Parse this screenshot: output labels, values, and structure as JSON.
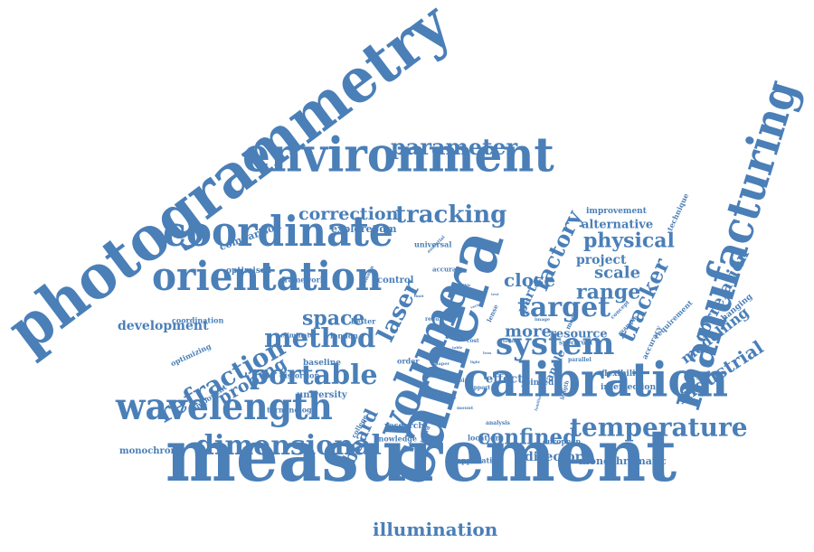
{
  "cloud": {
    "color": "#4a7fb8",
    "words": [
      {
        "text": "photogrammetry",
        "weight": 10
      },
      {
        "text": "measurement",
        "weight": 9
      },
      {
        "text": "camera",
        "weight": 9
      },
      {
        "text": "environment",
        "weight": 8
      },
      {
        "text": "manufacturing",
        "weight": 8
      },
      {
        "text": "calibration",
        "weight": 8
      },
      {
        "text": "volume",
        "weight": 7
      },
      {
        "text": "coordinate",
        "weight": 7
      },
      {
        "text": "orientation",
        "weight": 6
      },
      {
        "text": "wavelength",
        "weight": 6
      },
      {
        "text": "system",
        "weight": 5
      },
      {
        "text": "dimensional",
        "weight": 5
      },
      {
        "text": "temperature",
        "weight": 5
      },
      {
        "text": "portable",
        "weight": 5
      },
      {
        "text": "method",
        "weight": 4
      },
      {
        "text": "refraction",
        "weight": 4
      },
      {
        "text": "target",
        "weight": 4
      },
      {
        "text": "tracking",
        "weight": 4
      },
      {
        "text": "parameter",
        "weight": 4
      },
      {
        "text": "laser",
        "weight": 4
      },
      {
        "text": "confined",
        "weight": 4
      },
      {
        "text": "tracker",
        "weight": 4
      },
      {
        "text": "correction",
        "weight": 3
      },
      {
        "text": "factory",
        "weight": 3
      },
      {
        "text": "physical",
        "weight": 3
      },
      {
        "text": "range",
        "weight": 3
      },
      {
        "text": "space",
        "weight": 3
      },
      {
        "text": "board",
        "weight": 3
      },
      {
        "text": "illumination",
        "weight": 3
      },
      {
        "text": "industrial",
        "weight": 3
      },
      {
        "text": "correlation",
        "weight": 3
      },
      {
        "text": "modelling",
        "weight": 3
      },
      {
        "text": "close",
        "weight": 3
      },
      {
        "text": "scale",
        "weight": 3
      },
      {
        "text": "more",
        "weight": 3
      },
      {
        "text": "probing",
        "weight": 3
      },
      {
        "text": "development",
        "weight": 2
      },
      {
        "text": "directory",
        "weight": 2
      },
      {
        "text": "project",
        "weight": 2
      },
      {
        "text": "alternative",
        "weight": 2
      },
      {
        "text": "part",
        "weight": 2
      },
      {
        "text": "resource",
        "weight": 2
      },
      {
        "text": "comparison",
        "weight": 2
      },
      {
        "text": "explore3dm",
        "weight": 2
      },
      {
        "text": "effect",
        "weight": 2
      },
      {
        "text": "angle",
        "weight": 2
      },
      {
        "text": "optimised",
        "weight": 1
      },
      {
        "text": "control",
        "weight": 1
      },
      {
        "text": "improvement",
        "weight": 1
      },
      {
        "text": "technique",
        "weight": 1
      },
      {
        "text": "monochromatic",
        "weight": 1
      },
      {
        "text": "monochrome",
        "weight": 1
      },
      {
        "text": "university",
        "weight": 1
      },
      {
        "text": "jointed",
        "weight": 1
      },
      {
        "text": "flexibility",
        "weight": 1
      },
      {
        "text": "intersection",
        "weight": 1
      },
      {
        "text": "changing",
        "weight": 1
      },
      {
        "text": "accuracy",
        "weight": 1
      },
      {
        "text": "requirement",
        "weight": 1
      },
      {
        "text": "research",
        "weight": 1
      },
      {
        "text": "knowledge",
        "weight": 1
      },
      {
        "text": "location",
        "weight": 1
      },
      {
        "text": "european",
        "weight": 1
      },
      {
        "text": "application",
        "weight": 1
      },
      {
        "text": "baseline",
        "weight": 1
      },
      {
        "text": "distortion",
        "weight": 1
      },
      {
        "text": "terminology",
        "weight": 1
      },
      {
        "text": "component",
        "weight": 1
      },
      {
        "text": "optimizing",
        "weight": 1
      },
      {
        "text": "coordination",
        "weight": 1
      },
      {
        "text": "framework",
        "weight": 1
      },
      {
        "text": "london",
        "weight": 1
      },
      {
        "text": "better",
        "weight": 1
      },
      {
        "text": "order",
        "weight": 1
      },
      {
        "text": "eliminate",
        "weight": 1
      },
      {
        "text": "spectrum",
        "weight": 1
      },
      {
        "text": "universal",
        "weight": 1
      },
      {
        "text": "accurate",
        "weight": 1
      },
      {
        "text": "lense",
        "weight": 1
      },
      {
        "text": "model",
        "weight": 1
      },
      {
        "text": "example",
        "weight": 1
      },
      {
        "text": "concept",
        "weight": 1
      },
      {
        "text": "parallel",
        "weight": 1
      },
      {
        "text": "college",
        "weight": 1
      },
      {
        "text": "analysis",
        "weight": 1
      },
      {
        "text": "standard",
        "weight": 1
      },
      {
        "text": "point",
        "weight": 1
      },
      {
        "text": "support",
        "weight": 1
      },
      {
        "text": "length",
        "weight": 1
      },
      {
        "text": "cost",
        "weight": 1
      },
      {
        "text": "focal",
        "weight": 1
      },
      {
        "text": "image",
        "weight": 1
      },
      {
        "text": "require",
        "weight": 1
      },
      {
        "text": "paper",
        "weight": 1
      },
      {
        "text": "future",
        "weight": 1
      },
      {
        "text": "mount",
        "weight": 1
      },
      {
        "text": "common",
        "weight": 1
      },
      {
        "text": "essential",
        "weight": 1
      },
      {
        "text": "vector",
        "weight": 1
      },
      {
        "text": "familiar",
        "weight": 1
      },
      {
        "text": "table",
        "weight": 1
      },
      {
        "text": "setup",
        "weight": 1
      },
      {
        "text": "light",
        "weight": 1
      },
      {
        "text": "sensor",
        "weight": 1
      },
      {
        "text": "lens",
        "weight": 1
      },
      {
        "text": "limit",
        "weight": 1
      },
      {
        "text": "test",
        "weight": 1
      },
      {
        "text": "visible",
        "weight": 1
      }
    ]
  }
}
